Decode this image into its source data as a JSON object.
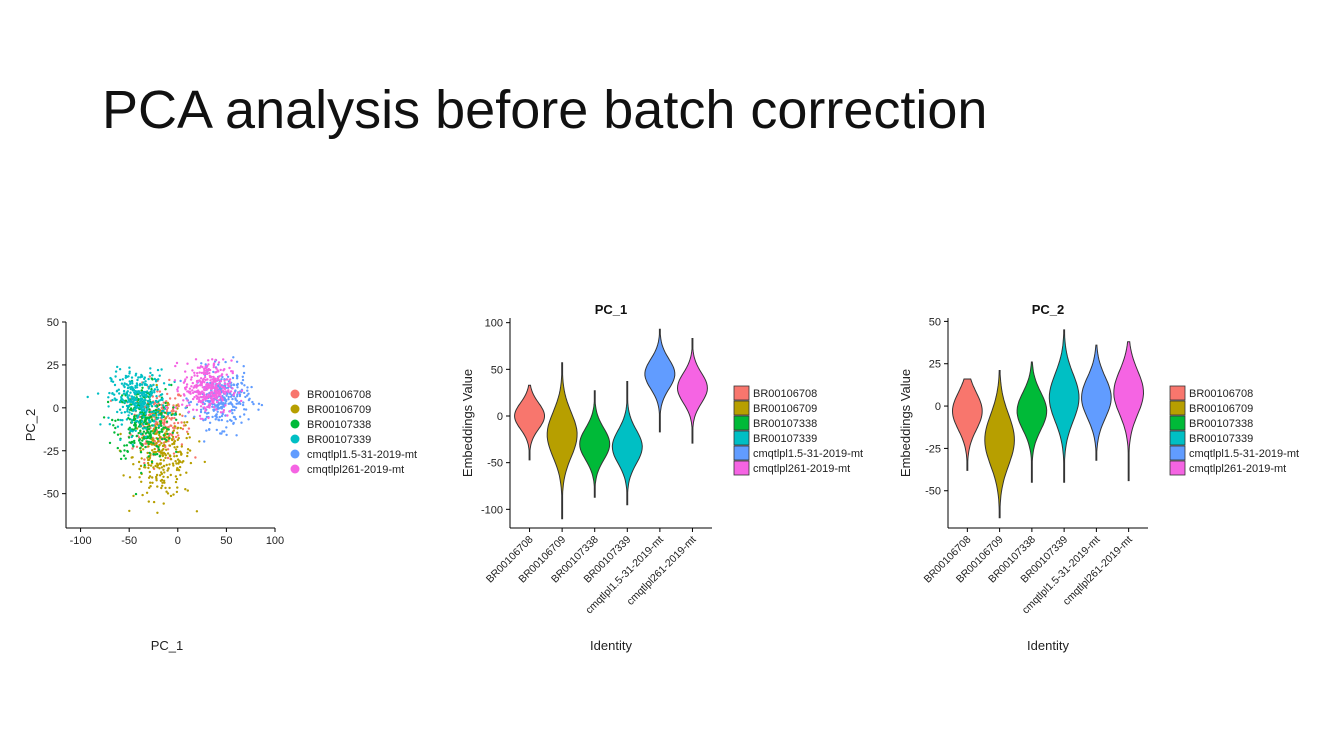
{
  "slide": {
    "title": "PCA analysis before batch correction"
  },
  "colors": {
    "BR00106708": "#F8766D",
    "BR00106709": "#B79F00",
    "BR00107338": "#00BA38",
    "BR00107339": "#00BFC4",
    "cmqtlpl1.5-31-2019-mt": "#619CFF",
    "cmqtlpl261-2019-mt": "#F564E3"
  },
  "chart_data": [
    {
      "type": "scatter",
      "title": "",
      "xlabel": "PC_1",
      "ylabel": "PC_2",
      "xlim": [
        -115,
        100
      ],
      "ylim": [
        -70,
        50
      ],
      "xticks": [
        -100,
        -50,
        0,
        50,
        100
      ],
      "yticks": [
        -50,
        -25,
        0,
        25,
        50
      ],
      "legend": {
        "position": "right",
        "entries": [
          "BR00106708",
          "BR00106709",
          "BR00107338",
          "BR00107339",
          "cmqtlpl1.5-31-2019-mt",
          "cmqtlpl261-2019-mt"
        ]
      },
      "series": [
        {
          "name": "BR00106708",
          "center": [
            -20,
            -8
          ],
          "spread": [
            20,
            15
          ],
          "n": 220
        },
        {
          "name": "BR00106709",
          "center": [
            -15,
            -28
          ],
          "spread": [
            22,
            18
          ],
          "n": 260
        },
        {
          "name": "BR00107338",
          "center": [
            -35,
            -8
          ],
          "spread": [
            20,
            15
          ],
          "n": 300
        },
        {
          "name": "BR00107339",
          "center": [
            -40,
            5
          ],
          "spread": [
            20,
            12
          ],
          "n": 320
        },
        {
          "name": "cmqtlpl1.5-31-2019-mt",
          "center": [
            45,
            5
          ],
          "spread": [
            20,
            12
          ],
          "n": 320
        },
        {
          "name": "cmqtlpl261-2019-mt",
          "center": [
            30,
            12
          ],
          "spread": [
            18,
            11
          ],
          "n": 320
        }
      ]
    },
    {
      "type": "violin",
      "title": "PC_1",
      "xlabel": "Identity",
      "ylabel": "Embeddings Value",
      "ylim": [
        -120,
        105
      ],
      "yticks": [
        -100,
        -50,
        0,
        50,
        100
      ],
      "categories": [
        "BR00106708",
        "BR00106709",
        "BR00107338",
        "BR00107339",
        "cmqtlpl1.5-31-2019-mt",
        "cmqtlpl261-2019-mt"
      ],
      "legend": {
        "position": "right",
        "entries": [
          "BR00106708",
          "BR00106709",
          "BR00107338",
          "BR00107339",
          "cmqtlpl1.5-31-2019-mt",
          "cmqtlpl261-2019-mt"
        ]
      },
      "series": [
        {
          "name": "BR00106708",
          "min": -47,
          "max": 33,
          "center": 0,
          "spread": 14
        },
        {
          "name": "BR00106709",
          "min": -110,
          "max": 57,
          "center": -20,
          "spread": 24
        },
        {
          "name": "BR00107338",
          "min": -87,
          "max": 27,
          "center": -30,
          "spread": 17
        },
        {
          "name": "BR00107339",
          "min": -95,
          "max": 37,
          "center": -33,
          "spread": 18
        },
        {
          "name": "cmqtlpl1.5-31-2019-mt",
          "min": -17,
          "max": 93,
          "center": 45,
          "spread": 16
        },
        {
          "name": "cmqtlpl261-2019-mt",
          "min": -29,
          "max": 83,
          "center": 30,
          "spread": 16
        }
      ]
    },
    {
      "type": "violin",
      "title": "PC_2",
      "xlabel": "Identity",
      "ylabel": "Embeddings Value",
      "ylim": [
        -72,
        52
      ],
      "yticks": [
        -50,
        -25,
        0,
        25,
        50
      ],
      "categories": [
        "BR00106708",
        "BR00106709",
        "BR00107338",
        "BR00107339",
        "cmqtlpl1.5-31-2019-mt",
        "cmqtlpl261-2019-mt"
      ],
      "legend": {
        "position": "right",
        "entries": [
          "BR00106708",
          "BR00106709",
          "BR00107338",
          "BR00107339",
          "cmqtlpl1.5-31-2019-mt",
          "cmqtlpl261-2019-mt"
        ]
      },
      "series": [
        {
          "name": "BR00106708",
          "min": -38,
          "max": 16,
          "center": -3,
          "spread": 11
        },
        {
          "name": "BR00106709",
          "min": -66,
          "max": 21,
          "center": -20,
          "spread": 15
        },
        {
          "name": "BR00107338",
          "min": -45,
          "max": 26,
          "center": -3,
          "spread": 11
        },
        {
          "name": "BR00107339",
          "min": -45,
          "max": 45,
          "center": 5,
          "spread": 14
        },
        {
          "name": "cmqtlpl1.5-31-2019-mt",
          "min": -32,
          "max": 36,
          "center": 5,
          "spread": 12
        },
        {
          "name": "cmqtlpl261-2019-mt",
          "min": -44,
          "max": 38,
          "center": 8,
          "spread": 13
        }
      ]
    }
  ]
}
